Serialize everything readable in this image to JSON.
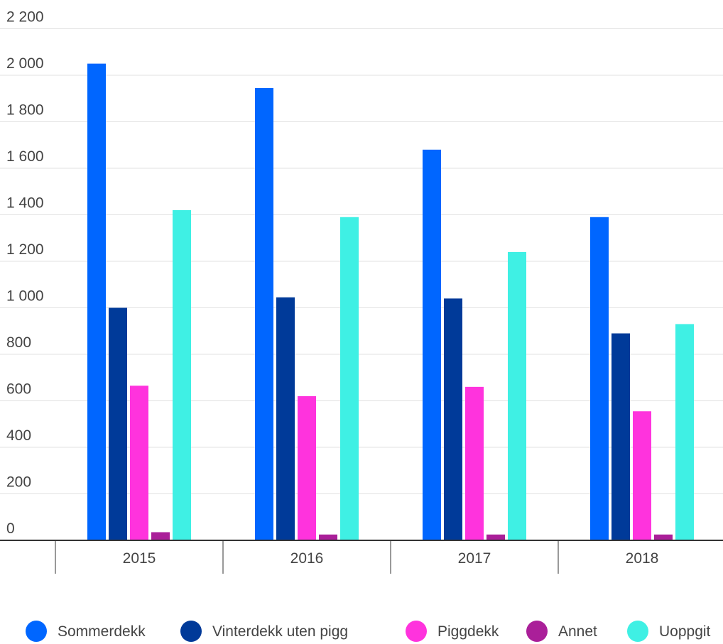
{
  "chart_data": {
    "type": "bar",
    "categories": [
      "2015",
      "2016",
      "2017",
      "2018"
    ],
    "series": [
      {
        "name": "Sommerdekk",
        "color": "#0066ff",
        "values": [
          2050,
          1945,
          1680,
          1390
        ]
      },
      {
        "name": "Vinterdekk uten pigg",
        "color": "#003a99",
        "values": [
          1000,
          1045,
          1040,
          890
        ]
      },
      {
        "name": "Piggdekk",
        "color": "#ff33dd",
        "values": [
          665,
          620,
          660,
          555
        ]
      },
      {
        "name": "Annet",
        "color": "#aa1f99",
        "values": [
          35,
          25,
          25,
          25
        ]
      },
      {
        "name": "Uoppgit",
        "color": "#3ff0e4",
        "values": [
          1420,
          1390,
          1240,
          930
        ]
      }
    ],
    "ylim": [
      0,
      2200
    ],
    "yticks": [
      0,
      200,
      400,
      600,
      800,
      1000,
      1200,
      1400,
      1600,
      1800,
      2000,
      2200
    ],
    "ytick_labels": [
      "0",
      "200",
      "400",
      "600",
      "800",
      "1 000",
      "1 200",
      "1 400",
      "1 600",
      "1 800",
      "2 000",
      "2 200"
    ],
    "grid": true,
    "legend_position": "bottom",
    "xlabel": "",
    "ylabel": "",
    "title": ""
  }
}
